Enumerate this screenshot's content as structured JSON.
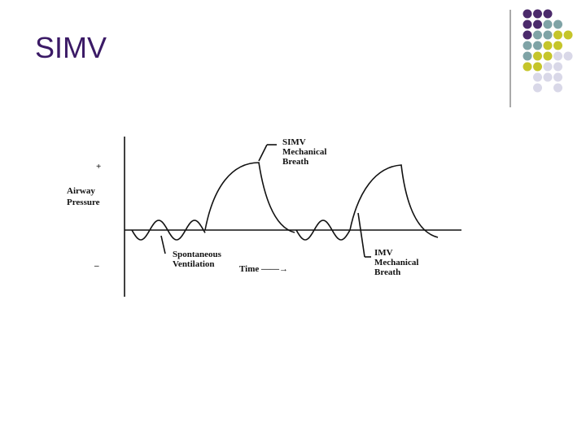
{
  "title": "SIMV",
  "diagram": {
    "y_plus": "+",
    "y_minus": "–",
    "y_label": [
      "Airway",
      "Pressure"
    ],
    "x_label": "Time ——→",
    "spontaneous": [
      "Spontaneous",
      "Ventilation"
    ],
    "simv": [
      "SIMV",
      "Mechanical",
      "Breath"
    ],
    "imv": [
      "IMV",
      "Mechanical",
      "Breath"
    ]
  }
}
